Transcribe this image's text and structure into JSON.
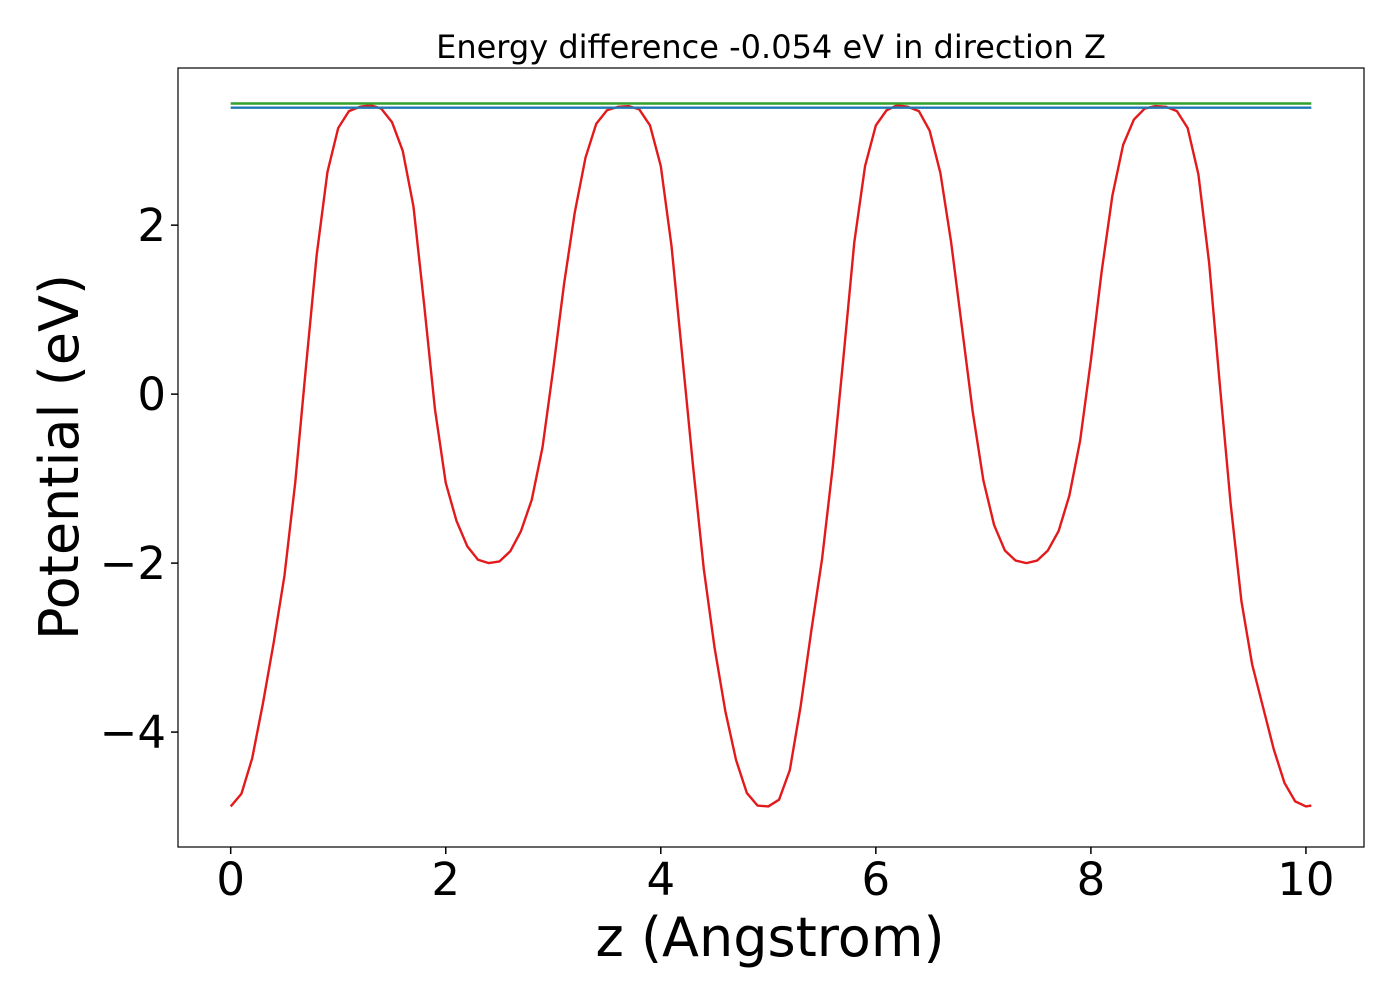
{
  "chart_data": {
    "type": "line",
    "title": "Energy difference -0.054 eV in direction Z",
    "xlabel": "z (Angstrom)",
    "ylabel": "Potential (eV)",
    "xlim": [
      -0.49,
      10.54
    ],
    "ylim": [
      -5.36,
      3.86
    ],
    "xticks": [
      0,
      2,
      4,
      6,
      8,
      10
    ],
    "xtick_labels": [
      "0",
      "2",
      "4",
      "6",
      "8",
      "10"
    ],
    "yticks": [
      -4,
      -2,
      0,
      2
    ],
    "ytick_labels": [
      "−4",
      "−2",
      "0",
      "2"
    ],
    "grid": false,
    "series": [
      {
        "color": "#e31a1c",
        "x": [
          0.0,
          0.1,
          0.2,
          0.3,
          0.4,
          0.5,
          0.6,
          0.7,
          0.8,
          0.9,
          1.0,
          1.1,
          1.2,
          1.3,
          1.4,
          1.5,
          1.6,
          1.7,
          1.8,
          1.9,
          2.0,
          2.1,
          2.2,
          2.3,
          2.4,
          2.5,
          2.6,
          2.7,
          2.8,
          2.9,
          3.0,
          3.1,
          3.2,
          3.3,
          3.4,
          3.5,
          3.6,
          3.7,
          3.8,
          3.9,
          4.0,
          4.1,
          4.2,
          4.3,
          4.4,
          4.5,
          4.6,
          4.7,
          4.8,
          4.9,
          5.0,
          5.1,
          5.2,
          5.3,
          5.4,
          5.5,
          5.6,
          5.7,
          5.8,
          5.9,
          6.0,
          6.1,
          6.2,
          6.3,
          6.4,
          6.5,
          6.6,
          6.7,
          6.8,
          6.9,
          7.0,
          7.1,
          7.2,
          7.3,
          7.4,
          7.5,
          7.6,
          7.7,
          7.8,
          7.9,
          8.0,
          8.1,
          8.2,
          8.3,
          8.4,
          8.5,
          8.6,
          8.7,
          8.8,
          8.9,
          9.0,
          9.1,
          9.2,
          9.3,
          9.4,
          9.5,
          9.6,
          9.7,
          9.8,
          9.9,
          10.0,
          10.05
        ],
        "y": [
          -4.88,
          -4.73,
          -4.31,
          -3.66,
          -2.94,
          -2.15,
          -1.05,
          0.32,
          1.65,
          2.63,
          3.15,
          3.35,
          3.4,
          3.42,
          3.38,
          3.22,
          2.88,
          2.22,
          1.05,
          -0.18,
          -1.05,
          -1.5,
          -1.8,
          -1.96,
          -2.0,
          -1.98,
          -1.86,
          -1.62,
          -1.25,
          -0.63,
          0.3,
          1.3,
          2.15,
          2.8,
          3.2,
          3.36,
          3.4,
          3.41,
          3.37,
          3.18,
          2.7,
          1.75,
          0.45,
          -0.85,
          -2.07,
          -3.0,
          -3.75,
          -4.33,
          -4.72,
          -4.87,
          -4.88,
          -4.8,
          -4.45,
          -3.7,
          -2.8,
          -1.95,
          -0.85,
          0.45,
          1.8,
          2.7,
          3.18,
          3.36,
          3.42,
          3.4,
          3.35,
          3.12,
          2.62,
          1.8,
          0.8,
          -0.2,
          -1.02,
          -1.55,
          -1.85,
          -1.97,
          -2.0,
          -1.97,
          -1.85,
          -1.62,
          -1.2,
          -0.55,
          0.4,
          1.45,
          2.35,
          2.95,
          3.25,
          3.38,
          3.41,
          3.4,
          3.35,
          3.15,
          2.6,
          1.55,
          0.1,
          -1.3,
          -2.45,
          -3.2,
          -3.7,
          -4.2,
          -4.6,
          -4.82,
          -4.88,
          -4.87
        ]
      },
      {
        "color": "#33a02c",
        "x": [
          0.0,
          10.05
        ],
        "y": [
          3.44,
          3.44
        ]
      },
      {
        "color": "#1f78b4",
        "x": [
          0.0,
          10.05
        ],
        "y": [
          3.39,
          3.39
        ]
      }
    ]
  }
}
